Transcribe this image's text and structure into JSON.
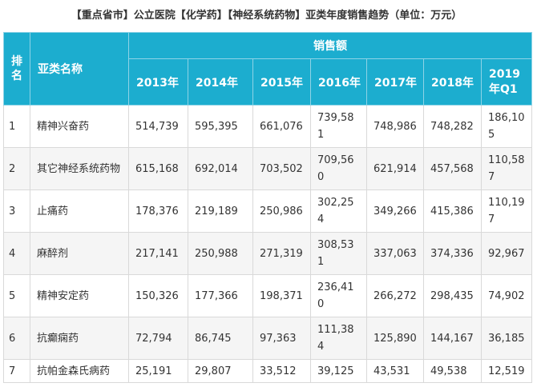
{
  "title": "【重点省市】公立医院【化学药】【神经系统药物】亚类年度销售趋势（单位：万元）",
  "header": {
    "rank": "排名",
    "name": "亚类名称",
    "sales": "销售额",
    "years": [
      "2013年",
      "2014年",
      "2015年",
      "2016年",
      "2017年",
      "2018年",
      "2019年Q1"
    ]
  },
  "rows": [
    {
      "rank": "1",
      "name": "精神兴奋药",
      "values": [
        "514,739",
        "595,395",
        "661,076",
        "739,581",
        "748,986",
        "748,282",
        "186,105"
      ]
    },
    {
      "rank": "2",
      "name": "其它神经系统药物",
      "values": [
        "615,168",
        "692,014",
        "703,502",
        "709,560",
        "621,914",
        "457,568",
        "110,587"
      ]
    },
    {
      "rank": "3",
      "name": "止痛药",
      "values": [
        "178,376",
        "219,189",
        "250,986",
        "302,254",
        "349,266",
        "415,386",
        "110,197"
      ]
    },
    {
      "rank": "4",
      "name": "麻醉剂",
      "values": [
        "217,141",
        "250,988",
        "271,319",
        "308,531",
        "337,063",
        "374,336",
        "92,967"
      ]
    },
    {
      "rank": "5",
      "name": "精神安定药",
      "values": [
        "150,326",
        "177,366",
        "198,371",
        "236,410",
        "266,272",
        "298,435",
        "74,902"
      ]
    },
    {
      "rank": "6",
      "name": "抗癫痫药",
      "values": [
        "72,794",
        "86,745",
        "97,363",
        "111,384",
        "125,890",
        "144,167",
        "36,185"
      ]
    },
    {
      "rank": "7",
      "name": "抗帕金森氏病药",
      "values": [
        "25,191",
        "29,807",
        "33,512",
        "39,125",
        "43,531",
        "49,538",
        "12,519"
      ]
    }
  ]
}
